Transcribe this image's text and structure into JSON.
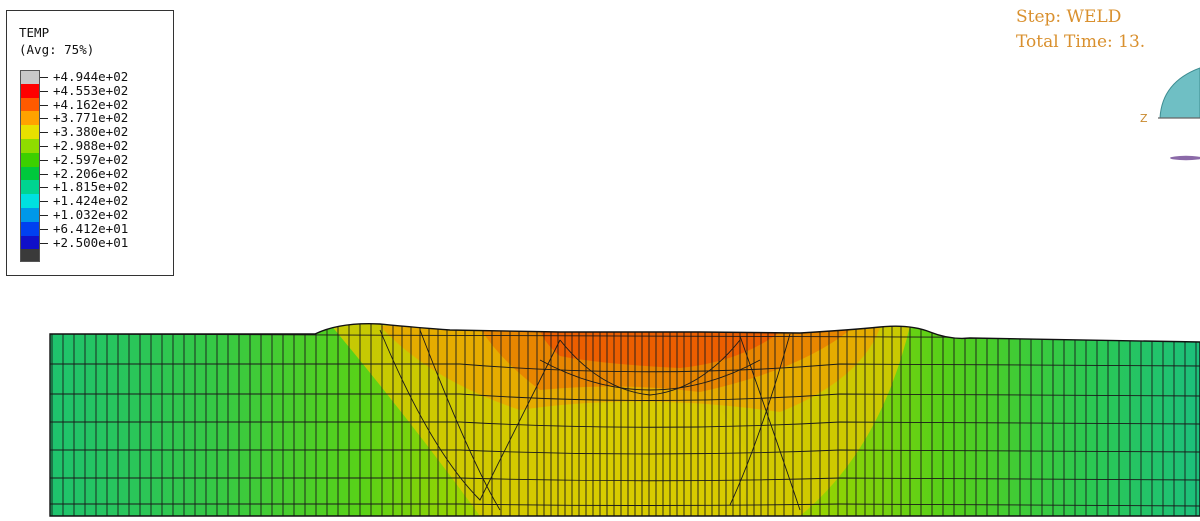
{
  "legend": {
    "title": "TEMP",
    "subtitle": "(Avg: 75%)",
    "levels": [
      {
        "label": "+4.944e+02",
        "color": "#c8c8c8"
      },
      {
        "label": "+4.553e+02",
        "color": "#ff0000"
      },
      {
        "label": "+4.162e+02",
        "color": "#ff5a00"
      },
      {
        "label": "+3.771e+02",
        "color": "#ffa200"
      },
      {
        "label": "+3.380e+02",
        "color": "#e8e000"
      },
      {
        "label": "+2.988e+02",
        "color": "#8fdc00"
      },
      {
        "label": "+2.597e+02",
        "color": "#3cd000"
      },
      {
        "label": "+2.206e+02",
        "color": "#00c83c"
      },
      {
        "label": "+1.815e+02",
        "color": "#00d490"
      },
      {
        "label": "+1.424e+02",
        "color": "#00e0e0"
      },
      {
        "label": "+1.032e+02",
        "color": "#0098e8"
      },
      {
        "label": "+6.412e+01",
        "color": "#0040f0"
      },
      {
        "label": "+2.500e+01",
        "color": "#1010c8"
      }
    ],
    "bottom_color": "#3a3a3a"
  },
  "step": {
    "step_line": "Step: WELD",
    "time_line": "Total Time: 13."
  },
  "triad": {
    "axis_label": "Z"
  }
}
